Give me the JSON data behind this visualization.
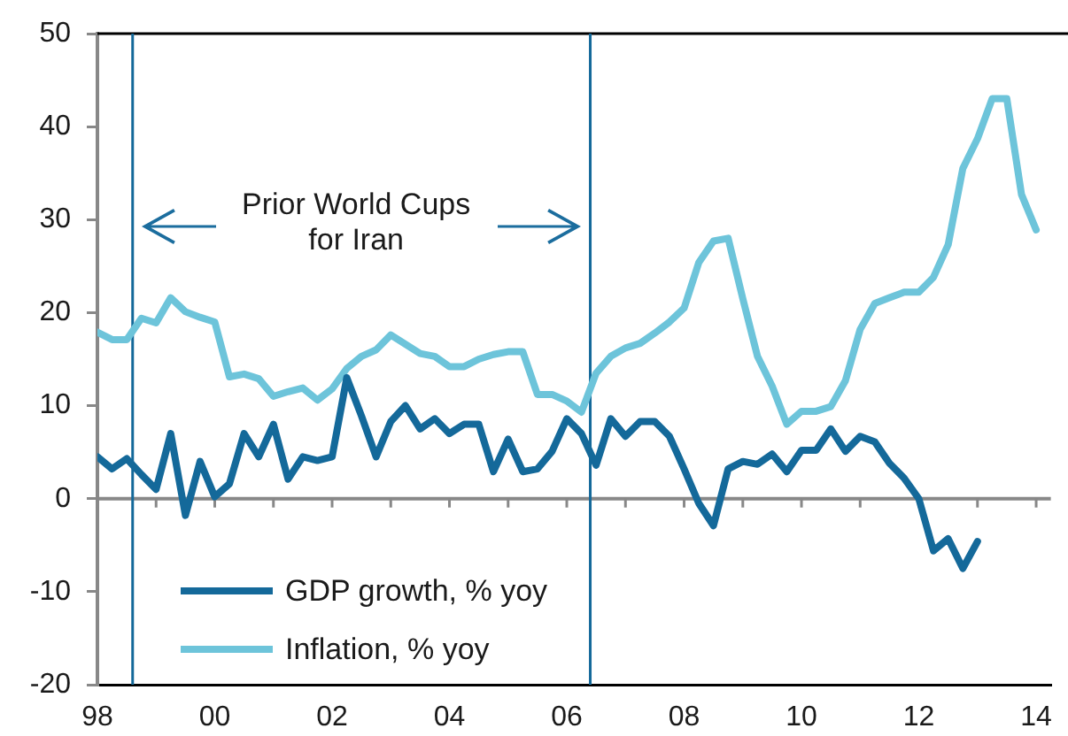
{
  "chart_data": {
    "type": "line",
    "x": [
      1998,
      1998.25,
      1998.5,
      1998.75,
      1999,
      1999.25,
      1999.5,
      1999.75,
      2000,
      2000.25,
      2000.5,
      2000.75,
      2001,
      2001.25,
      2001.5,
      2001.75,
      2002,
      2002.25,
      2002.5,
      2002.75,
      2003,
      2003.25,
      2003.5,
      2003.75,
      2004,
      2004.25,
      2004.5,
      2004.75,
      2005,
      2005.25,
      2005.5,
      2005.75,
      2006,
      2006.25,
      2006.5,
      2006.75,
      2007,
      2007.25,
      2007.5,
      2007.75,
      2008,
      2008.25,
      2008.5,
      2008.75,
      2009,
      2009.25,
      2009.5,
      2009.75,
      2010,
      2010.25,
      2010.5,
      2010.75,
      2011,
      2011.25,
      2011.5,
      2011.75,
      2012,
      2012.25,
      2012.5,
      2012.75,
      2013,
      2013.25,
      2013.5,
      2013.75,
      2014
    ],
    "series": [
      {
        "name": "GDP growth, % yoy",
        "color": "#14699a",
        "values": [
          4.5,
          3.2,
          4.3,
          2.6,
          1.0,
          7.0,
          -1.8,
          4.0,
          0.2,
          1.6,
          7.0,
          4.5,
          8.0,
          2.1,
          4.5,
          4.1,
          4.5,
          13.0,
          8.9,
          4.5,
          8.3,
          10.0,
          7.5,
          8.6,
          7.0,
          8.0,
          8.0,
          2.9,
          6.4,
          2.9,
          3.2,
          5.1,
          8.6,
          7.0,
          3.6,
          8.6,
          6.7,
          8.3,
          8.3,
          6.7,
          3.2,
          -0.5,
          -2.9,
          3.2,
          4.0,
          3.7,
          4.8,
          2.9,
          5.2,
          5.2,
          7.5,
          5.1,
          6.7,
          6.1,
          3.8,
          2.2,
          0.0,
          -5.6,
          -4.3,
          -7.5,
          -4.6,
          null,
          null,
          null,
          null
        ]
      },
      {
        "name": "Inflation, % yoy",
        "color": "#6dc4da",
        "values": [
          17.9,
          17.1,
          17.1,
          19.4,
          18.9,
          21.6,
          20.1,
          19.5,
          19.0,
          13.1,
          13.4,
          12.9,
          11.0,
          11.5,
          11.9,
          10.6,
          11.8,
          14.0,
          15.3,
          16.0,
          17.6,
          16.6,
          15.6,
          15.3,
          14.2,
          14.2,
          15.0,
          15.5,
          15.8,
          15.8,
          11.2,
          11.2,
          10.5,
          9.3,
          13.5,
          15.3,
          16.2,
          16.7,
          17.8,
          19.0,
          20.5,
          25.4,
          27.7,
          28.0,
          21.5,
          15.3,
          12.1,
          8.0,
          9.4,
          9.4,
          9.9,
          12.7,
          18.2,
          21.0,
          21.6,
          22.2,
          22.2,
          23.8,
          27.3,
          35.5,
          38.7,
          43.0,
          43.0,
          32.7,
          28.9
        ]
      }
    ],
    "xlim": [
      1998,
      2014.25
    ],
    "xticks": [
      {
        "value": 1998,
        "label": "98"
      },
      {
        "value": 1999,
        "label": null
      },
      {
        "value": 2000,
        "label": "00"
      },
      {
        "value": 2001,
        "label": null
      },
      {
        "value": 2002,
        "label": "02"
      },
      {
        "value": 2003,
        "label": null
      },
      {
        "value": 2004,
        "label": "04"
      },
      {
        "value": 2005,
        "label": null
      },
      {
        "value": 2006,
        "label": "06"
      },
      {
        "value": 2007,
        "label": null
      },
      {
        "value": 2008,
        "label": "08"
      },
      {
        "value": 2009,
        "label": null
      },
      {
        "value": 2010,
        "label": "10"
      },
      {
        "value": 2011,
        "label": null
      },
      {
        "value": 2012,
        "label": "12"
      },
      {
        "value": 2013,
        "label": null
      },
      {
        "value": 2014,
        "label": "14"
      }
    ],
    "ylim": [
      -20,
      50
    ],
    "yticks": [
      -20,
      -10,
      0,
      10,
      20,
      30,
      40,
      50
    ],
    "ref_lines": [
      {
        "axis": "x",
        "value": 1998.6,
        "color": "#14699a"
      },
      {
        "axis": "x",
        "value": 2006.4,
        "color": "#14699a"
      }
    ],
    "annotations": [
      "Prior World Cups\nfor Iran"
    ],
    "legend": "bottom left",
    "marker": "none",
    "line_style": "solid"
  }
}
